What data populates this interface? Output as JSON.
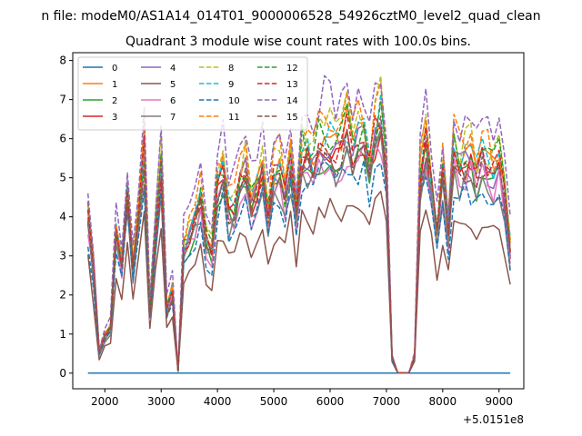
{
  "chart_data": {
    "type": "line",
    "suptitle": "n file: modeM0/AS1A14_014T01_9000006528_54926cztM0_level2_quad_clean",
    "title": "Quadrant 3 module wise count rates with 100.0s bins.",
    "xlabel": "",
    "ylabel": "",
    "x_offset_label": "+5.0151e8",
    "xlim": [
      1430,
      9440
    ],
    "ylim": [
      -0.4,
      8.2
    ],
    "xticks": [
      2000,
      3000,
      4000,
      5000,
      6000,
      7000,
      8000,
      9000
    ],
    "yticks": [
      0,
      1,
      2,
      3,
      4,
      5,
      6,
      7,
      8
    ],
    "legend_position": "top-left",
    "legend_columns": 4,
    "x": [
      1700,
      1800,
      1900,
      2000,
      2100,
      2200,
      2300,
      2400,
      2500,
      2600,
      2700,
      2800,
      2900,
      3000,
      3100,
      3200,
      3300,
      3400,
      3500,
      3600,
      3700,
      3800,
      3900,
      4000,
      4100,
      4200,
      4300,
      4400,
      4500,
      4600,
      4700,
      4800,
      4900,
      5000,
      5100,
      5200,
      5300,
      5400,
      5500,
      5600,
      5700,
      5800,
      5900,
      6000,
      6100,
      6200,
      6300,
      6400,
      6500,
      6600,
      6700,
      6800,
      6900,
      7000,
      7100,
      7200,
      7300,
      7400,
      7500,
      7600,
      7700,
      7800,
      7900,
      8000,
      8100,
      8200,
      8300,
      8400,
      8500,
      8600,
      8700,
      8800,
      8900,
      9000,
      9100,
      9200
    ],
    "base_profile": [
      3.9,
      2.5,
      0.5,
      0.9,
      1.1,
      3.4,
      2.7,
      4.4,
      2.6,
      3.9,
      5.3,
      1.5,
      3.4,
      5.0,
      1.5,
      2.0,
      0.05,
      3.0,
      3.3,
      3.7,
      4.2,
      3.2,
      3.0,
      4.5,
      4.9,
      3.9,
      4.0,
      4.6,
      4.9,
      4.1,
      4.4,
      4.9,
      3.8,
      4.7,
      4.9,
      4.2,
      5.2,
      3.9,
      5.3,
      5.4,
      5.0,
      5.5,
      5.6,
      5.6,
      5.3,
      5.5,
      5.9,
      5.4,
      5.7,
      5.8,
      4.9,
      5.8,
      6.2,
      4.9,
      0.4,
      0.01,
      0.01,
      0.01,
      0.4,
      4.8,
      5.5,
      4.6,
      3.3,
      4.7,
      3.4,
      5.3,
      5.0,
      5.1,
      5.2,
      4.8,
      5.2,
      5.0,
      4.8,
      5.1,
      4.2,
      3.0
    ],
    "series": [
      {
        "name": "0",
        "color": "#1f77b4",
        "dashed": false,
        "scale": 0.0,
        "seed": 1
      },
      {
        "name": "1",
        "color": "#ff7f0e",
        "dashed": false,
        "scale": 1.08,
        "seed": 2
      },
      {
        "name": "2",
        "color": "#2ca02c",
        "dashed": false,
        "scale": 0.99,
        "seed": 3
      },
      {
        "name": "3",
        "color": "#d62728",
        "dashed": false,
        "scale": 1.02,
        "seed": 4
      },
      {
        "name": "4",
        "color": "#9467bd",
        "dashed": false,
        "scale": 1.04,
        "seed": 5
      },
      {
        "name": "5",
        "color": "#8c564b",
        "dashed": false,
        "scale": 0.74,
        "seed": 6
      },
      {
        "name": "6",
        "color": "#e377c2",
        "dashed": false,
        "scale": 0.97,
        "seed": 7
      },
      {
        "name": "7",
        "color": "#7f7f7f",
        "dashed": false,
        "scale": 0.95,
        "seed": 8
      },
      {
        "name": "8",
        "color": "#bcbd22",
        "dashed": true,
        "scale": 1.14,
        "seed": 9
      },
      {
        "name": "9",
        "color": "#17becf",
        "dashed": true,
        "scale": 1.08,
        "seed": 10
      },
      {
        "name": "10",
        "color": "#1f77b4",
        "dashed": true,
        "scale": 0.9,
        "seed": 11
      },
      {
        "name": "11",
        "color": "#ff7f0e",
        "dashed": true,
        "scale": 1.16,
        "seed": 12
      },
      {
        "name": "12",
        "color": "#2ca02c",
        "dashed": true,
        "scale": 1.1,
        "seed": 13
      },
      {
        "name": "13",
        "color": "#d62728",
        "dashed": true,
        "scale": 1.07,
        "seed": 14
      },
      {
        "name": "14",
        "color": "#9467bd",
        "dashed": true,
        "scale": 1.26,
        "seed": 15
      },
      {
        "name": "15",
        "color": "#8c564b",
        "dashed": true,
        "scale": 1.02,
        "seed": 16
      }
    ]
  }
}
